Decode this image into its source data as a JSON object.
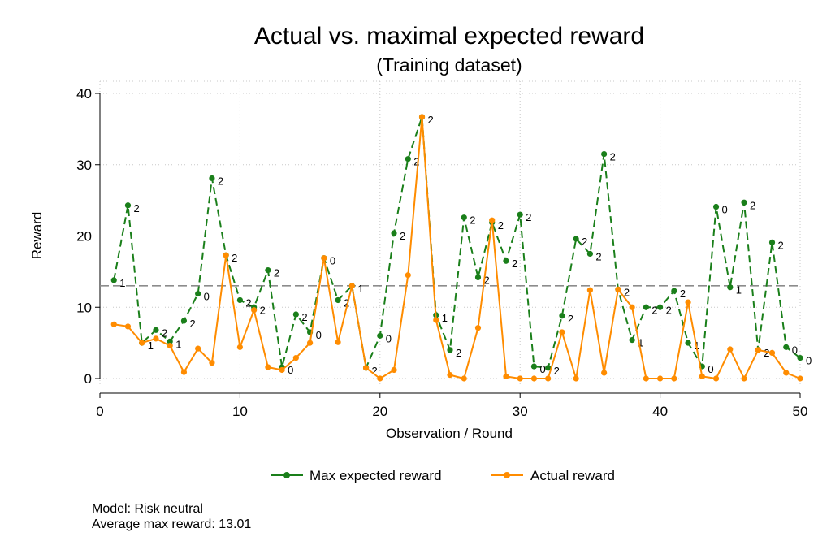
{
  "chart_data": {
    "type": "line",
    "title": "Actual vs. maximal expected reward",
    "subtitle": "(Training dataset)",
    "xlabel": "Observation / Round",
    "ylabel": "Reward",
    "xlim": [
      0,
      50
    ],
    "ylim": [
      0,
      40
    ],
    "xticks": [
      0,
      10,
      20,
      30,
      40,
      50
    ],
    "yticks": [
      0,
      10,
      20,
      30,
      40
    ],
    "reference_line": 13.01,
    "grid": true,
    "legend_position": "bottom",
    "x": [
      1,
      2,
      3,
      4,
      5,
      6,
      7,
      8,
      9,
      10,
      11,
      12,
      13,
      14,
      15,
      16,
      17,
      18,
      19,
      20,
      21,
      22,
      23,
      24,
      25,
      26,
      27,
      28,
      29,
      30,
      31,
      32,
      33,
      34,
      35,
      36,
      37,
      38,
      39,
      40,
      41,
      42,
      43,
      44,
      45,
      46,
      47,
      48,
      49,
      50
    ],
    "series": [
      {
        "name": "Max expected reward",
        "color": "#1a7f1a",
        "style": "dashed",
        "values": [
          13.8,
          24.3,
          5.0,
          6.8,
          5.2,
          8.1,
          11.9,
          28.1,
          17.3,
          11.0,
          10.0,
          15.2,
          1.6,
          9.0,
          6.5,
          16.9,
          11.0,
          13.0,
          1.5,
          6.0,
          20.4,
          30.8,
          36.7,
          8.9,
          4.0,
          22.6,
          14.2,
          21.9,
          16.5,
          23.0,
          1.7,
          1.5,
          8.8,
          19.6,
          17.5,
          31.5,
          12.5,
          5.4,
          10.0,
          10.0,
          12.3,
          5.0,
          1.7,
          24.1,
          12.8,
          24.7,
          4.0,
          19.1,
          4.4,
          2.9
        ],
        "point_labels": [
          "1",
          "2",
          "1",
          "2",
          "1",
          "2",
          "0",
          "2",
          "2",
          "2",
          "2",
          "2",
          "0",
          "2",
          "0",
          "0",
          "2",
          "1",
          "2",
          "0",
          "2",
          "2",
          "2",
          "1",
          "2",
          "2",
          "2",
          "2",
          "2",
          "2",
          "0",
          "2",
          "2",
          "2",
          "2",
          "2",
          "2",
          "1",
          "2",
          "2",
          "2",
          "1",
          "0",
          "0",
          "1",
          "2",
          "2",
          "2",
          "0",
          "0"
        ]
      },
      {
        "name": "Actual reward",
        "color": "#ff8c00",
        "style": "solid",
        "values": [
          7.6,
          7.3,
          5.0,
          5.6,
          4.6,
          0.9,
          4.2,
          2.2,
          17.3,
          4.4,
          9.6,
          1.6,
          1.2,
          2.9,
          5.0,
          16.9,
          5.1,
          13.0,
          1.5,
          0.0,
          1.2,
          14.5,
          36.7,
          8.2,
          0.5,
          0.0,
          7.1,
          22.2,
          0.3,
          0.0,
          0.0,
          0.0,
          6.5,
          0.0,
          12.4,
          0.8,
          12.5,
          10.0,
          0.0,
          0.0,
          0.0,
          10.7,
          0.3,
          0.0,
          4.1,
          0.0,
          4.0,
          3.6,
          0.8,
          0.0
        ]
      }
    ]
  },
  "notes": {
    "model": "Model: Risk neutral",
    "average": "Average max reward: 13.01"
  }
}
